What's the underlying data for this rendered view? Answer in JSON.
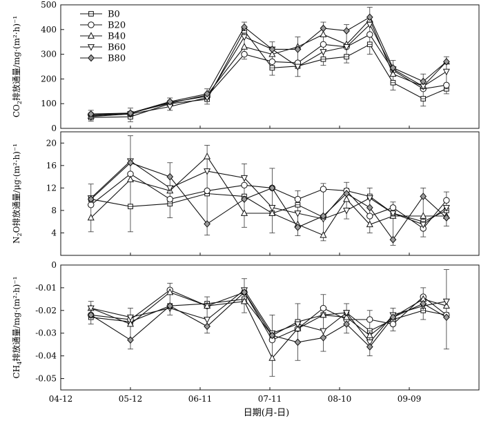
{
  "figure": {
    "xlabel": "日期(月-日)",
    "x_tick_labels": [
      "04-12",
      "05-12",
      "06-11",
      "07-11",
      "08-10",
      "09-09"
    ]
  },
  "legend": {
    "entries": [
      "B0",
      "B20",
      "B40",
      "B60",
      "B80"
    ],
    "placement": "top-left of top panel"
  },
  "chart_data": [
    {
      "type": "line",
      "id": "co2",
      "ylabel_prefix": "CO",
      "ylabel_sub": "2",
      "ylabel_rest": "排放通量/mg·(m²·h)⁻¹",
      "ylim": [
        0,
        500
      ],
      "yticks": [
        0,
        100,
        200,
        300,
        400,
        500
      ],
      "x_dates": [
        "04-25",
        "05-12",
        "05-29",
        "06-14",
        "06-30",
        "07-12",
        "07-23",
        "08-03",
        "08-13",
        "08-23",
        "09-02",
        "09-15",
        "09-25"
      ],
      "series": [
        {
          "name": "B0",
          "values": [
            44,
            47,
            100,
            118,
            395,
            245,
            252,
            280,
            290,
            340,
            185,
            120,
            160
          ]
        },
        {
          "name": "B20",
          "values": [
            55,
            60,
            105,
            130,
            300,
            270,
            265,
            340,
            330,
            380,
            235,
            160,
            175
          ]
        },
        {
          "name": "B40",
          "values": [
            50,
            62,
            102,
            135,
            330,
            300,
            330,
            380,
            340,
            440,
            220,
            170,
            270
          ]
        },
        {
          "name": "B60",
          "values": [
            48,
            58,
            88,
            125,
            370,
            320,
            250,
            310,
            330,
            420,
            240,
            170,
            230
          ]
        },
        {
          "name": "B80",
          "values": [
            58,
            62,
            108,
            140,
            410,
            320,
            320,
            405,
            395,
            450,
            245,
            190,
            270
          ]
        }
      ],
      "error_bars": [
        15,
        20,
        15,
        20,
        20,
        30,
        40,
        25,
        25,
        40,
        30,
        30,
        20
      ]
    },
    {
      "type": "line",
      "id": "n2o",
      "ylabel_prefix": "N",
      "ylabel_sub": "2",
      "ylabel_rest": "O排放通量/μg·(m²·h)⁻¹",
      "ylim": [
        0,
        22
      ],
      "yticks": [
        4,
        8,
        12,
        16,
        20
      ],
      "x_dates": [
        "04-25",
        "05-12",
        "05-29",
        "06-14",
        "06-30",
        "07-12",
        "07-23",
        "08-03",
        "08-13",
        "08-23",
        "09-02",
        "09-15",
        "09-25"
      ],
      "series": [
        {
          "name": "B0",
          "values": [
            10,
            8.7,
            9.2,
            11.0,
            10.5,
            7.5,
            9.0,
            6.8,
            11.5,
            10.5,
            7.5,
            6.0,
            8.0
          ]
        },
        {
          "name": "B20",
          "values": [
            9.0,
            14.5,
            10.0,
            11.5,
            12.5,
            12.0,
            10.0,
            11.8,
            11.5,
            7.0,
            8.5,
            4.8,
            9.8
          ]
        },
        {
          "name": "B40",
          "values": [
            6.7,
            13.5,
            11.5,
            17.6,
            7.5,
            7.5,
            5.5,
            3.6,
            10.0,
            5.5,
            7.0,
            7.0,
            7.0
          ]
        },
        {
          "name": "B60",
          "values": [
            10.2,
            16.8,
            12.0,
            15.0,
            13.8,
            8.5,
            7.5,
            6.5,
            8.0,
            10.2,
            7.5,
            5.5,
            8.5
          ]
        },
        {
          "name": "B80",
          "values": [
            10.0,
            16.5,
            14.0,
            5.6,
            10.0,
            12.0,
            5.0,
            7.0,
            11.0,
            8.5,
            2.8,
            10.5,
            6.7
          ]
        }
      ],
      "error_bars": [
        2.5,
        4.5,
        2.5,
        2.0,
        2.5,
        3.5,
        1.5,
        1.0,
        1.5,
        1.5,
        1.0,
        1.5,
        1.5
      ]
    },
    {
      "type": "line",
      "id": "ch4",
      "ylabel_prefix": "CH",
      "ylabel_sub": "4",
      "ylabel_rest": "排放通量/mg·(m²·h)⁻¹",
      "ylim": [
        -0.055,
        0
      ],
      "yticks": [
        0,
        -0.01,
        -0.02,
        -0.03,
        -0.04,
        -0.05
      ],
      "x_dates": [
        "04-25",
        "05-12",
        "05-29",
        "06-14",
        "06-30",
        "07-12",
        "07-23",
        "08-03",
        "08-13",
        "08-23",
        "09-02",
        "09-15",
        "09-25"
      ],
      "series": [
        {
          "name": "B0",
          "values": [
            -0.023,
            -0.025,
            -0.018,
            -0.017,
            -0.015,
            -0.031,
            -0.025,
            -0.022,
            -0.021,
            -0.029,
            -0.024,
            -0.02,
            -0.022
          ]
        },
        {
          "name": "B20",
          "values": [
            -0.022,
            -0.024,
            -0.011,
            -0.018,
            -0.012,
            -0.033,
            -0.028,
            -0.019,
            -0.024,
            -0.024,
            -0.026,
            -0.014,
            -0.022
          ]
        },
        {
          "name": "B40",
          "values": [
            -0.019,
            -0.026,
            -0.012,
            -0.018,
            -0.016,
            -0.041,
            -0.028,
            -0.022,
            -0.023,
            -0.031,
            -0.023,
            -0.015,
            -0.018
          ]
        },
        {
          "name": "B60",
          "values": [
            -0.019,
            -0.023,
            -0.019,
            -0.024,
            -0.011,
            -0.03,
            -0.026,
            -0.029,
            -0.021,
            -0.034,
            -0.022,
            -0.018,
            -0.016
          ]
        },
        {
          "name": "B80",
          "values": [
            -0.022,
            -0.033,
            -0.018,
            -0.027,
            -0.012,
            -0.031,
            -0.034,
            -0.032,
            -0.026,
            -0.036,
            -0.023,
            -0.017,
            -0.023
          ]
        }
      ],
      "error_bars": [
        0.003,
        0.004,
        0.003,
        0.003,
        0.005,
        0.008,
        0.008,
        0.006,
        0.004,
        0.004,
        0.003,
        0.004,
        0.014
      ]
    }
  ]
}
